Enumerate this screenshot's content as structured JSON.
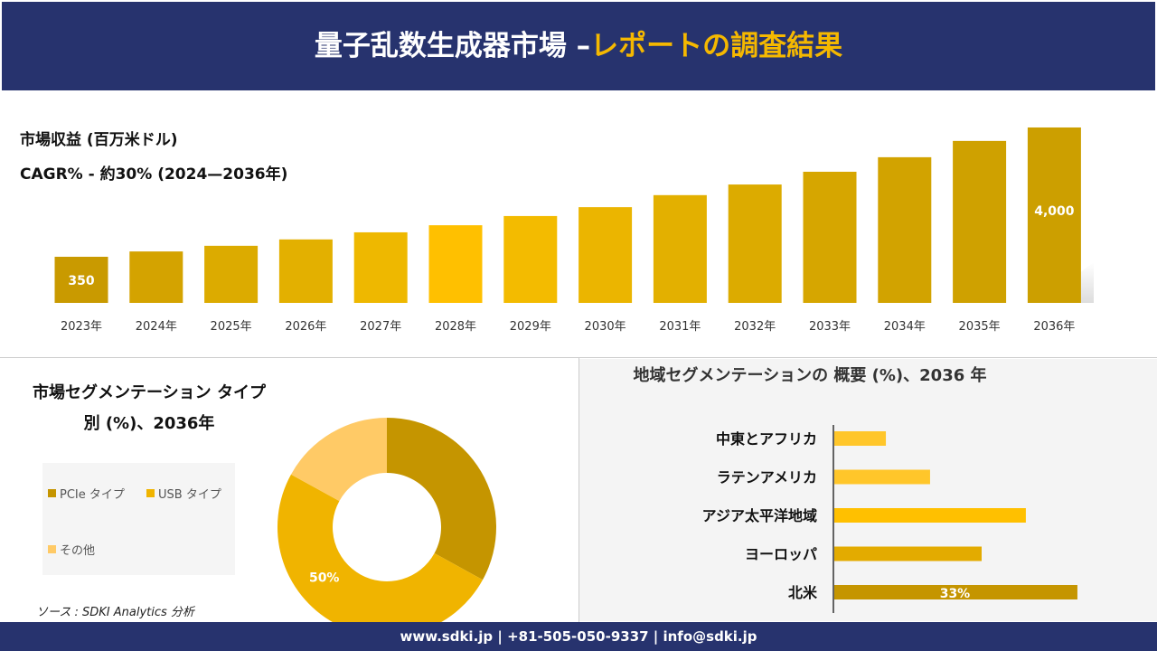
{
  "header": {
    "title_main": "量子乱数生成器市場 –",
    "title_accent": "レポートの調査結果"
  },
  "revenue": {
    "label": "市場収益 (百万米ドル)",
    "cagr": "CAGR% - 約30% (2024—2036年)"
  },
  "footer": {
    "text": "www.sdki.jp | +81-505-050-9337 | info@sdki.jp"
  },
  "source": "ソース : SDKI Analytics 分析",
  "chart_data": [
    {
      "type": "bar",
      "title": "市場収益 (百万米ドル)",
      "categories": [
        "2023年",
        "2024年",
        "2025年",
        "2026年",
        "2027年",
        "2028年",
        "2029年",
        "2030年",
        "2031年",
        "2032年",
        "2033年",
        "2034年",
        "2035年",
        "2036年"
      ],
      "values": [
        350,
        500,
        660,
        840,
        1040,
        1240,
        1500,
        1750,
        2090,
        2390,
        2750,
        3160,
        3620,
        4000
      ],
      "data_labels": {
        "0": "350",
        "13": "4,000"
      },
      "colors": [
        "#c99a00",
        "#d4a300",
        "#dcab00",
        "#e3b000",
        "#eeb800",
        "#ffc000",
        "#f3bb00",
        "#ebb500",
        "#e3b000",
        "#dcab00",
        "#d6a600",
        "#d2a300",
        "#cfa100",
        "#cc9f00"
      ]
    },
    {
      "type": "pie",
      "title": "市場セグメンテーション タイプ別 (%)、2036年",
      "slices": [
        {
          "name": "PCIe タイプ",
          "value": 33,
          "color": "#c59500"
        },
        {
          "name": "USB タイプ",
          "value": 50,
          "color": "#f0b400",
          "label": "50%"
        },
        {
          "name": "その他",
          "value": 17,
          "color": "#ffca66"
        }
      ]
    },
    {
      "type": "bar",
      "orientation": "horizontal",
      "title": "地域セグメンテーションの 概要 (%)、2036 年",
      "categories": [
        "中東とアフリカ",
        "ラテンアメリカ",
        "アジア太平洋地域",
        "ヨーロッパ",
        "北米"
      ],
      "values": [
        7,
        13,
        26,
        20,
        33
      ],
      "data_labels": {
        "4": "33%"
      },
      "colors": [
        "#ffc62a",
        "#ffc62a",
        "#ffc000",
        "#e3ab00",
        "#c59500"
      ]
    }
  ]
}
